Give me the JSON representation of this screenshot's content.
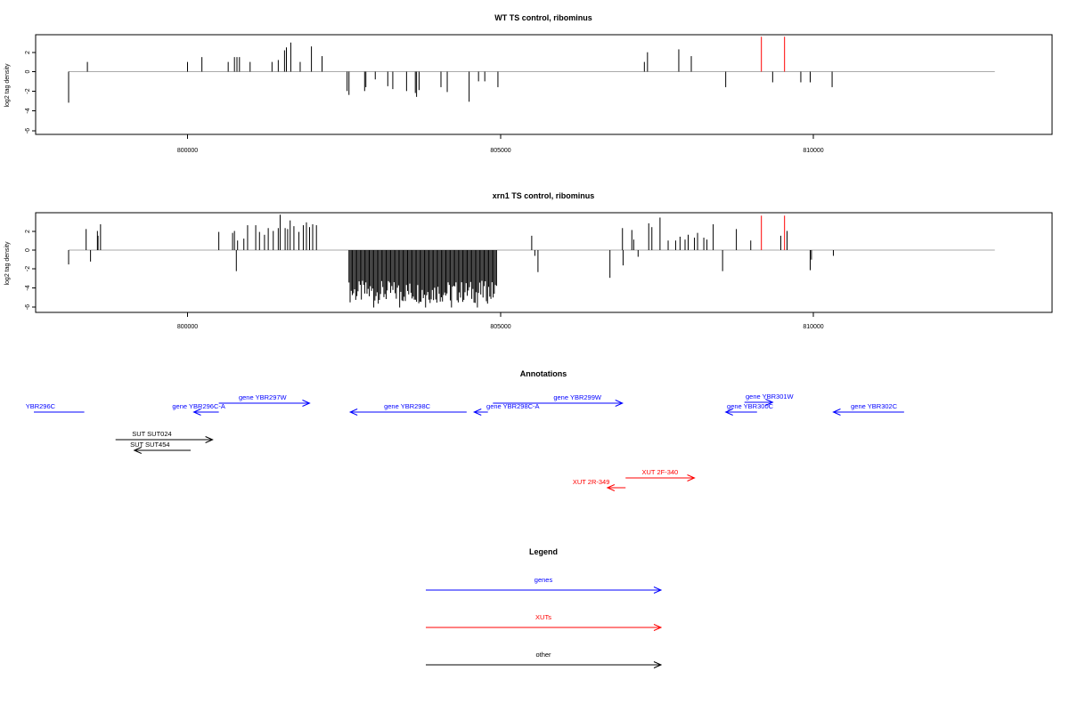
{
  "colors": {
    "gene": "#0000ff",
    "xut": "#ff0000",
    "other": "#000000",
    "baseline": "#aaaaaa",
    "bar": "#000000",
    "highlight": "#ff0000"
  },
  "chart_data": [
    {
      "type": "bar",
      "title": "WT TS control, ribominus",
      "ylabel": "log2 tag density",
      "yticks": [
        "-6",
        "-4",
        "-2",
        "0",
        "2"
      ],
      "ylim": [
        -6.5,
        3.9
      ],
      "xlim": [
        797500,
        813800
      ],
      "xticks": [
        "800000",
        "805000",
        "810000"
      ],
      "x_tick_values": [
        800000,
        805000,
        810000
      ],
      "baseline_range": [
        798100,
        812900
      ],
      "points": [
        [
          798100,
          -3.2
        ],
        [
          798400,
          1.0
        ],
        [
          800000,
          1.0
        ],
        [
          800230,
          1.5
        ],
        [
          800650,
          1.0
        ],
        [
          800750,
          1.5
        ],
        [
          800790,
          1.5
        ],
        [
          800830,
          1.5
        ],
        [
          801000,
          1.0
        ],
        [
          801350,
          1.0
        ],
        [
          801450,
          1.2
        ],
        [
          801550,
          2.2
        ],
        [
          801580,
          2.5
        ],
        [
          801650,
          3.0
        ],
        [
          801800,
          1.0
        ],
        [
          801980,
          2.6
        ],
        [
          802150,
          1.6
        ],
        [
          802550,
          -2.0
        ],
        [
          802580,
          -2.4
        ],
        [
          802830,
          -2.0
        ],
        [
          802850,
          -1.6
        ],
        [
          803000,
          -0.8
        ],
        [
          803200,
          -1.5
        ],
        [
          803280,
          -1.8
        ],
        [
          803500,
          -2.0
        ],
        [
          803640,
          -2.2
        ],
        [
          803660,
          -2.6
        ],
        [
          803700,
          -1.9
        ],
        [
          804050,
          -1.6
        ],
        [
          804150,
          -2.1
        ],
        [
          804500,
          -3.1
        ],
        [
          804650,
          -1.0
        ],
        [
          804750,
          -1.0
        ],
        [
          804960,
          -1.6
        ],
        [
          807300,
          1.0
        ],
        [
          807350,
          2.0
        ],
        [
          807850,
          2.3
        ],
        [
          808050,
          1.6
        ],
        [
          808600,
          -1.6
        ],
        [
          809170,
          3.6,
          "h"
        ],
        [
          809540,
          3.6,
          "h"
        ],
        [
          809350,
          -1.1
        ],
        [
          809800,
          -1.1
        ],
        [
          809950,
          -1.1
        ],
        [
          810300,
          -1.6
        ]
      ]
    },
    {
      "type": "bar",
      "title": "xrn1 TS control, ribominus",
      "ylabel": "log2 tag density",
      "yticks": [
        "-6",
        "-4",
        "-2",
        "0",
        "2"
      ],
      "ylim": [
        -6.5,
        3.9
      ],
      "xlim": [
        797500,
        813800
      ],
      "xticks": [
        "800000",
        "805000",
        "810000"
      ],
      "x_tick_values": [
        800000,
        805000,
        810000
      ],
      "baseline_range": [
        798100,
        812900
      ],
      "points": [
        [
          798100,
          -1.5
        ],
        [
          798380,
          2.2
        ],
        [
          798450,
          -1.2
        ],
        [
          798560,
          2.0
        ],
        [
          798610,
          2.7
        ],
        [
          798570,
          1.5
        ],
        [
          800500,
          1.9
        ],
        [
          800720,
          1.8
        ],
        [
          800750,
          2.0
        ],
        [
          800780,
          -2.2
        ],
        [
          800800,
          1.0
        ],
        [
          800900,
          1.2
        ],
        [
          800960,
          2.6
        ],
        [
          801090,
          2.6
        ],
        [
          801150,
          1.9
        ],
        [
          801230,
          1.6
        ],
        [
          801290,
          2.3
        ],
        [
          801370,
          2.0
        ],
        [
          801450,
          2.3
        ],
        [
          801480,
          3.7
        ],
        [
          801560,
          2.3
        ],
        [
          801600,
          2.2
        ],
        [
          801640,
          3.1
        ],
        [
          801700,
          2.5
        ],
        [
          801780,
          1.9
        ],
        [
          801850,
          2.6
        ],
        [
          801900,
          2.9
        ],
        [
          801950,
          2.4
        ],
        [
          802000,
          2.7
        ],
        [
          802060,
          2.6
        ],
        [
          805500,
          1.5
        ],
        [
          805550,
          -0.6
        ],
        [
          805600,
          -2.3
        ],
        [
          806750,
          -2.9
        ],
        [
          806950,
          2.3
        ],
        [
          806960,
          -1.6
        ],
        [
          807100,
          2.1
        ],
        [
          807130,
          1.1
        ],
        [
          807200,
          -0.7
        ],
        [
          807370,
          2.8
        ],
        [
          807420,
          2.4
        ],
        [
          807550,
          3.4
        ],
        [
          807680,
          1.0
        ],
        [
          807800,
          1.0
        ],
        [
          807870,
          1.4
        ],
        [
          807950,
          1.1
        ],
        [
          808000,
          1.6
        ],
        [
          808100,
          1.3
        ],
        [
          808150,
          1.8
        ],
        [
          808250,
          1.3
        ],
        [
          808300,
          1.1
        ],
        [
          808400,
          2.7
        ],
        [
          808550,
          -2.2
        ],
        [
          808770,
          2.2
        ],
        [
          809000,
          1.0
        ],
        [
          809170,
          3.6,
          "h"
        ],
        [
          809540,
          3.6,
          "h"
        ],
        [
          809480,
          1.5
        ],
        [
          809580,
          2.0
        ],
        [
          809950,
          -2.1
        ],
        [
          809970,
          -1.0
        ],
        [
          810320,
          -0.6
        ]
      ],
      "dense_block": {
        "from": 802580,
        "to": 804950,
        "step": 18,
        "min": -6.0,
        "typical": -4.4
      }
    }
  ],
  "annotations": {
    "title": "Annotations",
    "xlim": [
      797500,
      813800
    ],
    "items": [
      {
        "label": "YBR296C",
        "kind": "gene",
        "start": 797400,
        "end": 798350,
        "dir": "none",
        "row": 1,
        "label_pos": 797650
      },
      {
        "label": "gene YBR296C-A",
        "kind": "gene",
        "start": 800100,
        "end": 800500,
        "dir": "left",
        "row": 1,
        "label_pos": 800180
      },
      {
        "label": "gene YBR297W",
        "kind": "gene",
        "start": 800500,
        "end": 801950,
        "dir": "right",
        "row": 0,
        "label_pos": 801200
      },
      {
        "label": "gene YBR298C",
        "kind": "gene",
        "start": 802600,
        "end": 804460,
        "dir": "left",
        "row": 1,
        "label_pos": 803510
      },
      {
        "label": "gene YBR298C-A",
        "kind": "gene",
        "start": 804580,
        "end": 804800,
        "dir": "left",
        "row": 1,
        "label_pos": 805200
      },
      {
        "label": "gene YBR299W",
        "kind": "gene",
        "start": 804880,
        "end": 806950,
        "dir": "right",
        "row": 0,
        "label_pos": 806230
      },
      {
        "label": "gene YBR300C",
        "kind": "gene",
        "start": 808600,
        "end": 809100,
        "dir": "left",
        "row": 1,
        "label_pos": 808990
      },
      {
        "label": "gene YBR301W",
        "kind": "gene",
        "start": 808900,
        "end": 809350,
        "dir": "right",
        "row": 0.5,
        "label_pos": 809300
      },
      {
        "label": "gene YBR302C",
        "kind": "gene",
        "start": 810320,
        "end": 811450,
        "dir": "left",
        "row": 1,
        "label_pos": 810970
      },
      {
        "label": "SUT SUT024",
        "kind": "other",
        "start": 798850,
        "end": 800400,
        "dir": "right",
        "row": 3,
        "label_pos": 799430
      },
      {
        "label": "SUT SUT454",
        "kind": "other",
        "start": 799150,
        "end": 800050,
        "dir": "left",
        "row": 4,
        "label_pos": 799400
      },
      {
        "label": "XUT 2F-340",
        "kind": "xut",
        "start": 807000,
        "end": 808100,
        "dir": "right",
        "row": 6,
        "label_pos": 807550
      },
      {
        "label": "XUT 2R-349",
        "kind": "xut",
        "start": 806710,
        "end": 807000,
        "dir": "left",
        "row": 7,
        "label_pos": 806450
      }
    ]
  },
  "legend": {
    "title": "Legend",
    "items": [
      {
        "label": "genes",
        "kind": "gene"
      },
      {
        "label": "XUTs",
        "kind": "xut"
      },
      {
        "label": "other",
        "kind": "other"
      }
    ]
  }
}
